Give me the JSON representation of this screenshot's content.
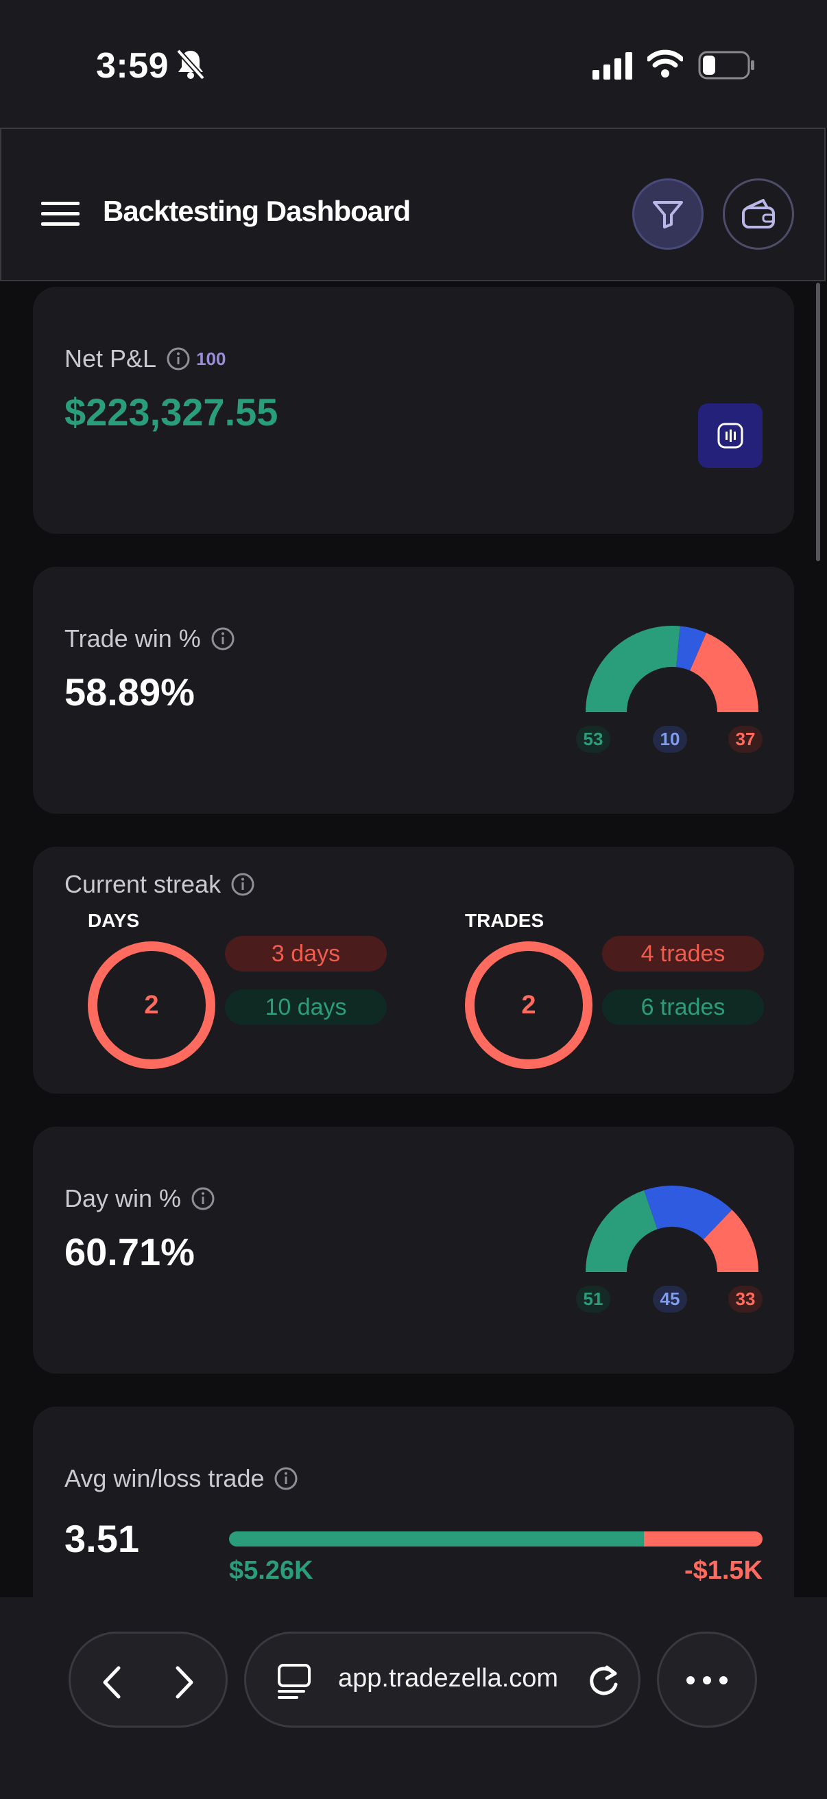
{
  "status_bar": {
    "time": "3:59"
  },
  "header": {
    "title": "Backtesting Dashboard"
  },
  "net_pnl": {
    "label": "Net P&L",
    "badge": "100",
    "value": "$223,327.55"
  },
  "trade_win": {
    "label": "Trade win %",
    "value": "58.89%",
    "gauge": {
      "win": 53,
      "breakeven": 10,
      "loss": 37,
      "win_label": "53",
      "breakeven_label": "10",
      "loss_label": "37"
    }
  },
  "current_streak": {
    "label": "Current streak",
    "days": {
      "heading": "DAYS",
      "current": "2",
      "loss_pill": "3 days",
      "win_pill": "10 days"
    },
    "trades": {
      "heading": "TRADES",
      "current": "2",
      "loss_pill": "4 trades",
      "win_pill": "6 trades"
    }
  },
  "day_win": {
    "label": "Day win %",
    "value": "60.71%",
    "gauge": {
      "win": 51,
      "breakeven": 45,
      "loss": 33,
      "win_label": "51",
      "breakeven_label": "45",
      "loss_label": "33"
    }
  },
  "avg_win_loss": {
    "label": "Avg win/loss trade",
    "value": "3.51",
    "avg_win": "$5.26K",
    "avg_loss": "-$1.5K",
    "win_fraction": 0.778
  },
  "browser": {
    "url": "app.tradezella.com"
  },
  "colors": {
    "win": "#2a9d7a",
    "breakeven": "#2f5be0",
    "loss": "#ff6b5f",
    "accent": "#24217a"
  }
}
